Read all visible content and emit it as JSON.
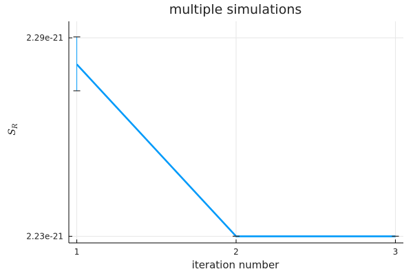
{
  "chart_data": {
    "type": "line",
    "title": "multiple simulations",
    "xlabel": "iteration number",
    "ylabel": "S",
    "ylabel_sub": "R",
    "x": [
      1,
      2,
      3
    ],
    "xticks": [
      {
        "value": 1,
        "label": "1"
      },
      {
        "value": 2,
        "label": "2"
      },
      {
        "value": 3,
        "label": "3"
      }
    ],
    "yticks": [
      {
        "value": 2.29e-21,
        "label": "2.29e-21"
      },
      {
        "value": 2.23e-21,
        "label": "2.23e-21"
      }
    ],
    "xlim": [
      0.95,
      3.05
    ],
    "ylim": [
      2.228e-21,
      2.295e-21
    ],
    "grid": true,
    "legend": "none",
    "series": [
      {
        "values": [
          2.282e-21,
          2.23e-21,
          2.23e-21
        ],
        "err_low": [
          2.274e-21,
          2.23e-21,
          2.23e-21
        ],
        "err_high": [
          2.2903e-21,
          2.23e-21,
          2.23e-21
        ],
        "color": "#009AFA"
      }
    ]
  }
}
